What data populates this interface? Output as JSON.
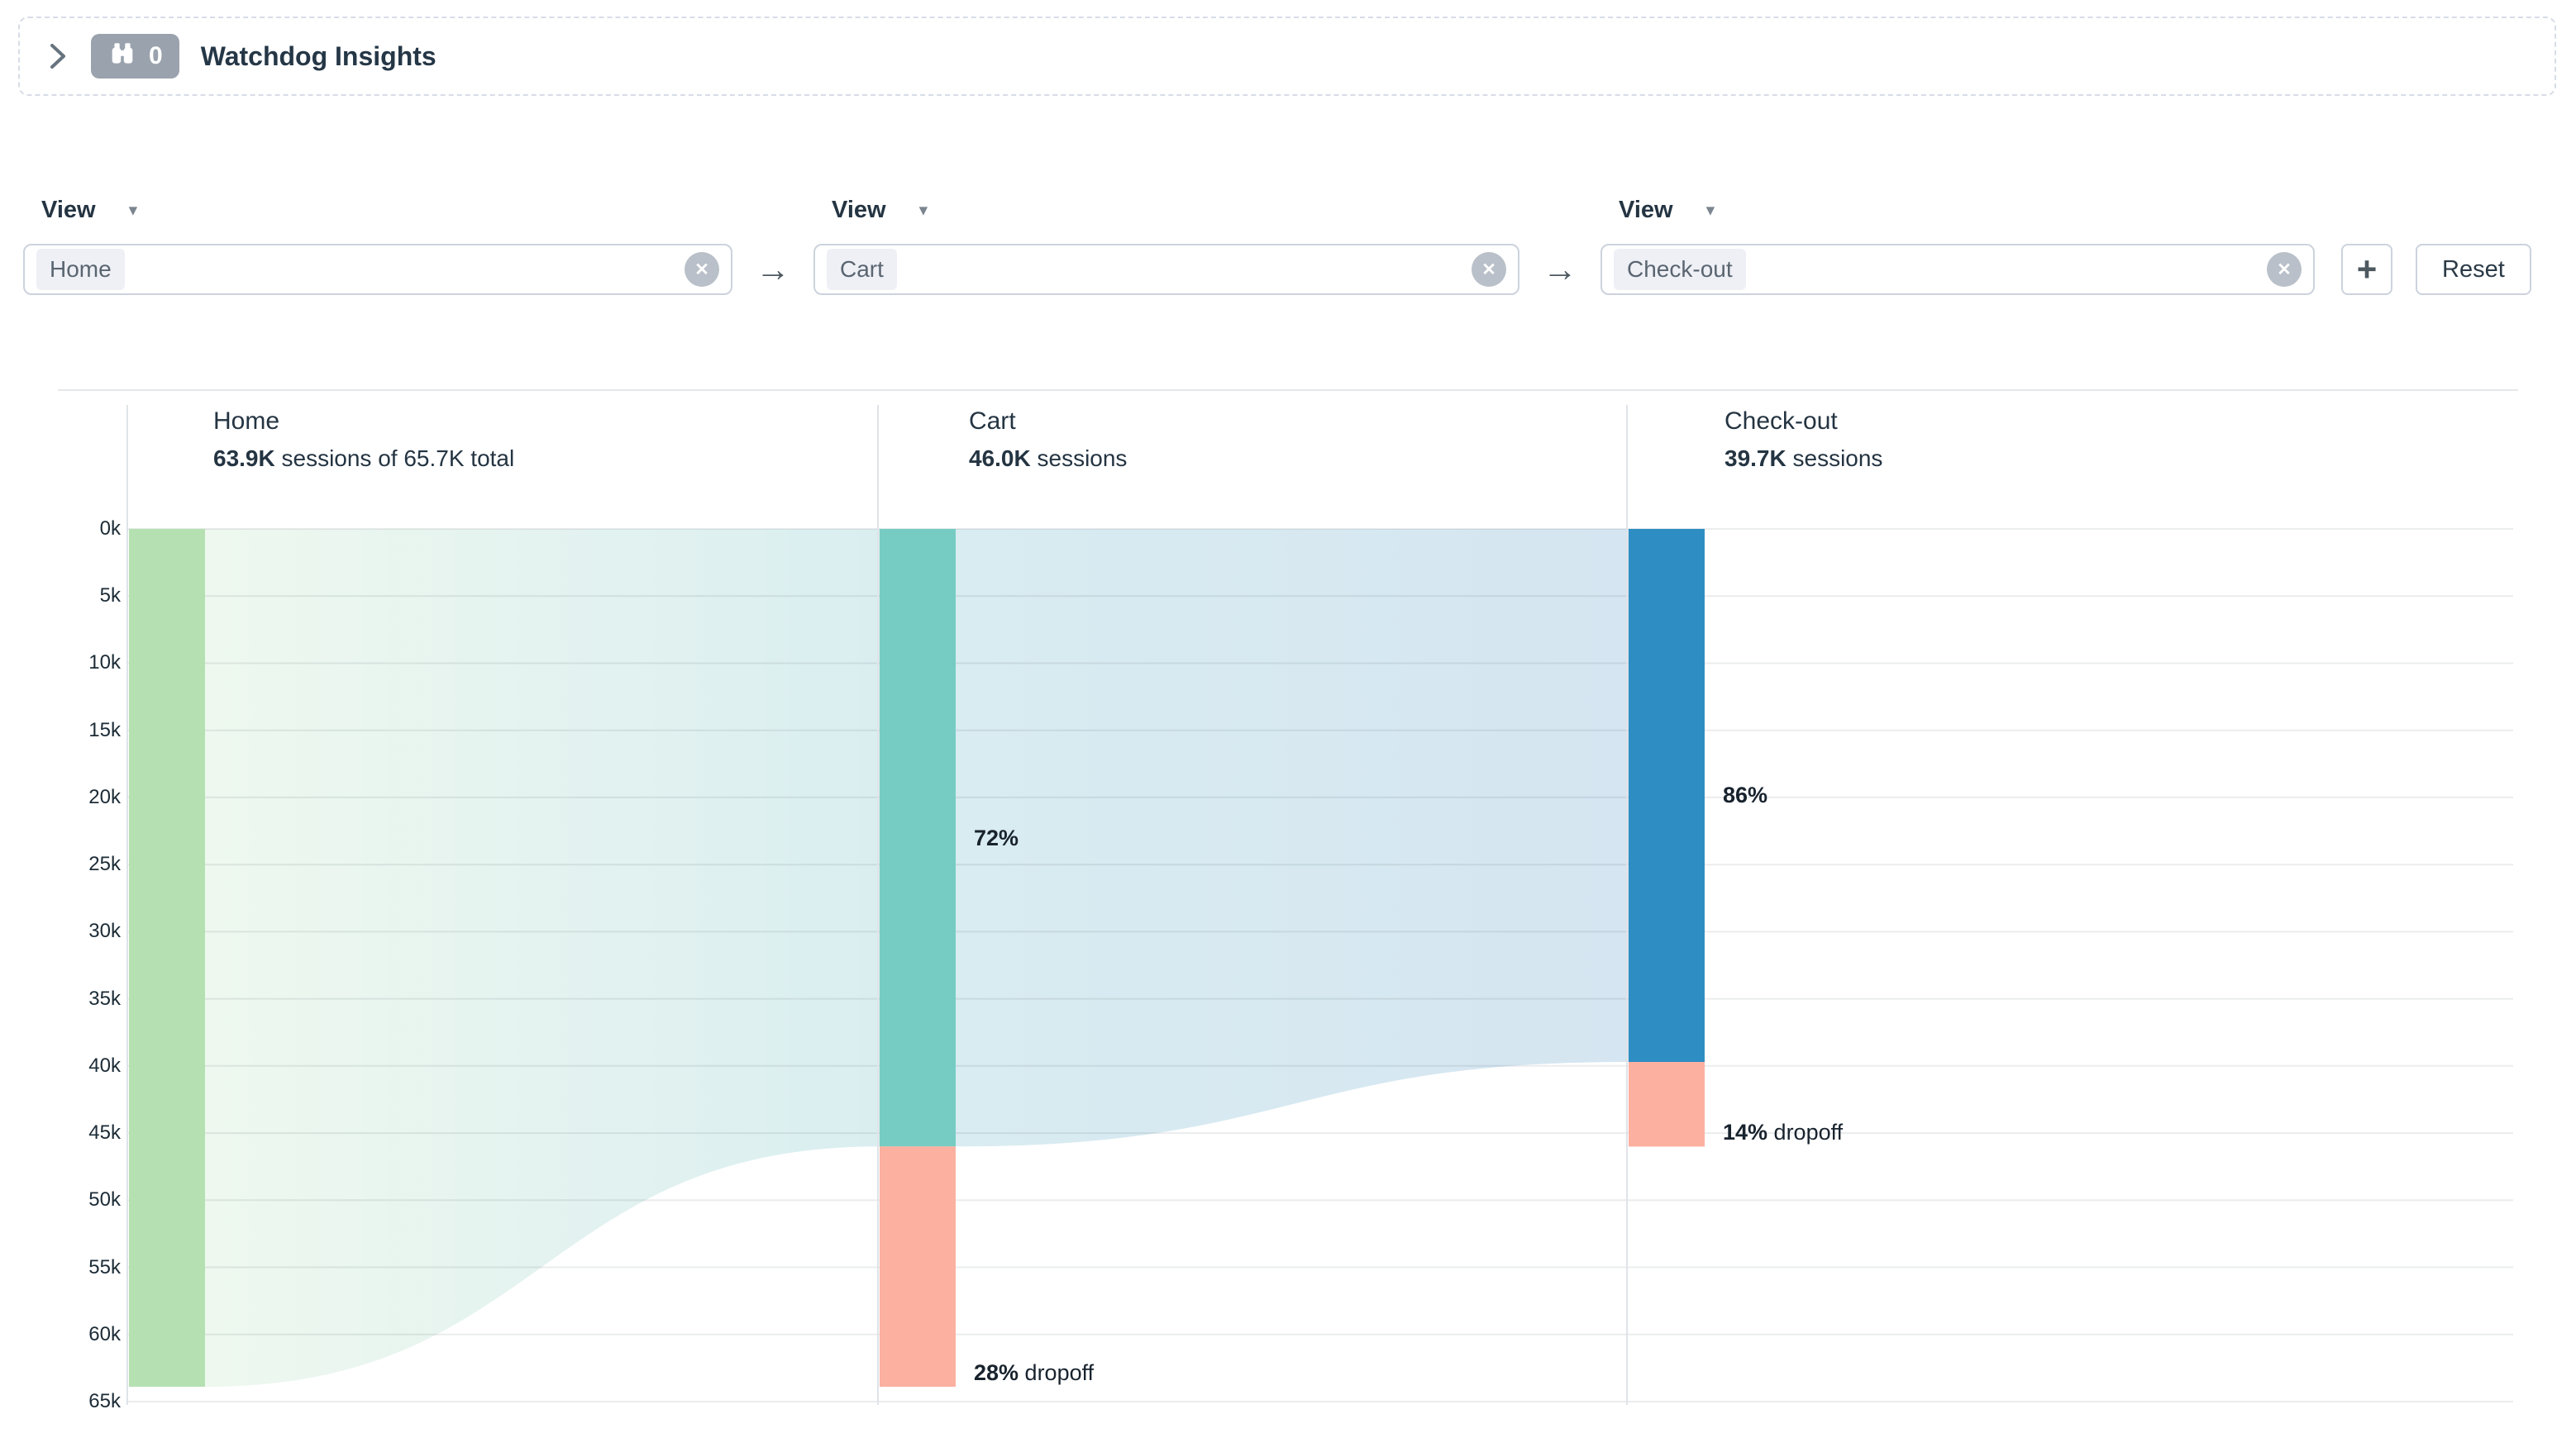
{
  "icons": {
    "chevron": "›",
    "caret": "▾",
    "clear": "✕",
    "arrow": "→",
    "plus": "+"
  },
  "header": {
    "badge_count": "0",
    "title": "Watchdog Insights"
  },
  "filters": {
    "steps": [
      {
        "label": "View",
        "value": "Home"
      },
      {
        "label": "View",
        "value": "Cart"
      },
      {
        "label": "View",
        "value": "Check-out"
      }
    ],
    "reset_label": "Reset"
  },
  "chart_data": {
    "type": "funnel",
    "unit": "sessions",
    "total_sessions": 65700,
    "total_label": "65.7K",
    "y_axis": {
      "ticks": [
        "0k",
        "5k",
        "10k",
        "15k",
        "20k",
        "25k",
        "30k",
        "35k",
        "40k",
        "45k",
        "50k",
        "55k",
        "60k",
        "65k"
      ],
      "max_value": 65000,
      "grid": true
    },
    "steps": [
      {
        "name": "Home",
        "sessions": 63900,
        "sessions_label": "63.9K",
        "subtitle_suffix": " sessions of 65.7K total",
        "bar_color": "#b5e1b2"
      },
      {
        "name": "Cart",
        "sessions": 46000,
        "sessions_label": "46.0K",
        "subtitle_suffix": " sessions",
        "bar_color": "#76ccc3",
        "conversion_label": "72%",
        "dropoff_label": "28%"
      },
      {
        "name": "Check-out",
        "sessions": 39700,
        "sessions_label": "39.7K",
        "subtitle_suffix": " sessions",
        "bar_color": "#2e8ec3",
        "conversion_label": "86%",
        "dropoff_label": "14%"
      }
    ],
    "dropoff_word": "dropoff",
    "dropoff_color": "#fcb0a0",
    "flow_gradients": [
      [
        "#eef8ef",
        "#daeef0"
      ],
      [
        "#d9ecf1",
        "#d5e5f1"
      ]
    ],
    "grid_color": "rgba(31,45,58,0.09)",
    "divider_color": "#dfe3e8"
  }
}
